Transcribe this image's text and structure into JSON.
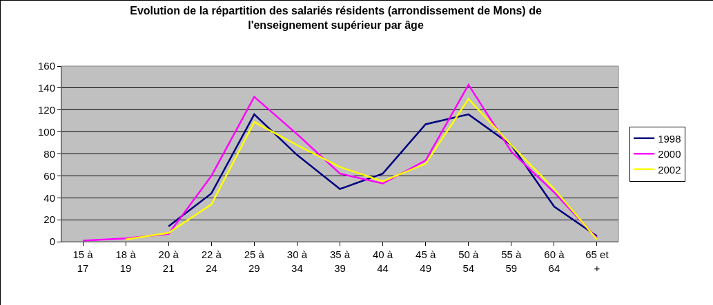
{
  "chart_data": {
    "type": "line",
    "title": "Evolution de la répartition des salariés résidents (arrondissement de Mons) de l'enseignement supérieur par âge",
    "categories": [
      "15 à 17",
      "18 à 19",
      "20 à 21",
      "22 à 24",
      "25 à 29",
      "30 à 34",
      "35 à 39",
      "40 à 44",
      "45 à 49",
      "50 à 54",
      "55 à 59",
      "60 à 64",
      "65 et +"
    ],
    "series": [
      {
        "name": "1998",
        "color": "#000080",
        "values": [
          null,
          null,
          14,
          44,
          116,
          79,
          48,
          62,
          107,
          116,
          88,
          32,
          5
        ]
      },
      {
        "name": "2000",
        "color": "#ff00ff",
        "values": [
          1,
          3,
          7,
          60,
          132,
          98,
          62,
          53,
          74,
          143,
          82,
          45,
          3
        ]
      },
      {
        "name": "2002",
        "color": "#ffff00",
        "values": [
          null,
          2,
          8,
          34,
          109,
          88,
          68,
          55,
          71,
          130,
          88,
          48,
          2
        ]
      }
    ],
    "ylim": [
      0,
      160
    ],
    "yticks": [
      0,
      20,
      40,
      60,
      80,
      100,
      120,
      140,
      160
    ],
    "grid": "y",
    "legend": "right",
    "marker": "none",
    "line_style": "solid"
  }
}
